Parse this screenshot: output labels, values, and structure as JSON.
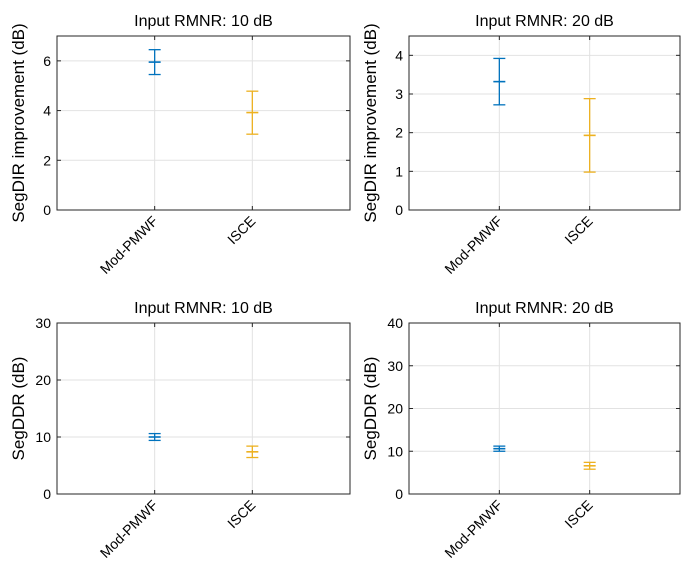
{
  "chart_data": [
    {
      "type": "errorbar",
      "title": "Input RMNR: 10 dB",
      "xlabel": "",
      "ylabel": "SegDIR improvement (dB)",
      "categories": [
        "Mod-PMWF",
        "ISCE"
      ],
      "ylim": [
        0,
        7
      ],
      "yticks": [
        0,
        2,
        4,
        6
      ],
      "grid": true,
      "series": [
        {
          "mean": 5.95,
          "lower": 5.45,
          "upper": 6.45,
          "color": "#0072BD"
        },
        {
          "mean": 3.92,
          "lower": 3.05,
          "upper": 4.78,
          "color": "#EDB120"
        }
      ]
    },
    {
      "type": "errorbar",
      "title": "Input RMNR: 20 dB",
      "xlabel": "",
      "ylabel": "SegDIR improvement (dB)",
      "categories": [
        "Mod-PMWF",
        "ISCE"
      ],
      "ylim": [
        0,
        4.5
      ],
      "yticks": [
        0,
        1,
        2,
        3,
        4
      ],
      "grid": true,
      "series": [
        {
          "mean": 3.32,
          "lower": 2.72,
          "upper": 3.92,
          "color": "#0072BD"
        },
        {
          "mean": 1.93,
          "lower": 0.98,
          "upper": 2.88,
          "color": "#EDB120"
        }
      ]
    },
    {
      "type": "errorbar",
      "title": "Input RMNR: 10 dB",
      "xlabel": "",
      "ylabel": "SegDDR (dB)",
      "categories": [
        "Mod-PMWF",
        "ISCE"
      ],
      "ylim": [
        0,
        30
      ],
      "yticks": [
        0,
        10,
        20,
        30
      ],
      "grid": true,
      "series": [
        {
          "mean": 10.0,
          "lower": 9.4,
          "upper": 10.6,
          "color": "#0072BD"
        },
        {
          "mean": 7.4,
          "lower": 6.4,
          "upper": 8.4,
          "color": "#EDB120"
        }
      ]
    },
    {
      "type": "errorbar",
      "title": "Input RMNR: 20 dB",
      "xlabel": "",
      "ylabel": "SegDDR (dB)",
      "categories": [
        "Mod-PMWF",
        "ISCE"
      ],
      "ylim": [
        0,
        40
      ],
      "yticks": [
        0,
        10,
        20,
        30,
        40
      ],
      "grid": true,
      "series": [
        {
          "mean": 10.6,
          "lower": 10.0,
          "upper": 11.2,
          "color": "#0072BD"
        },
        {
          "mean": 6.6,
          "lower": 5.8,
          "upper": 7.4,
          "color": "#EDB120"
        }
      ]
    }
  ]
}
